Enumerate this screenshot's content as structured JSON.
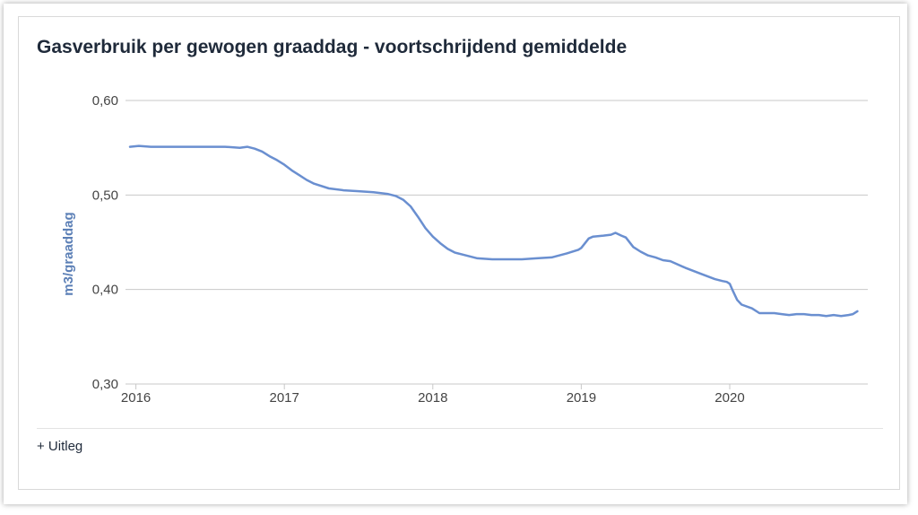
{
  "card": {
    "title": "Gasverbruik per gewogen graaddag - voortschrijdend gemiddelde",
    "toggle_label": "+ Uitleg"
  },
  "colors": {
    "line": "#6a8fd0",
    "grid": "#c8c8c8",
    "title": "#1f2a3a",
    "axis_title": "#5b7fb6"
  },
  "chart_data": {
    "type": "line",
    "title": "Gasverbruik per gewogen graaddag - voortschrijdend gemiddelde",
    "xlabel": "",
    "ylabel": "m3/graaddag",
    "xlim": [
      2015.93,
      2020.93
    ],
    "ylim": [
      0.3,
      0.6
    ],
    "yticks": [
      0.3,
      0.4,
      0.5,
      0.6
    ],
    "ytick_labels": [
      "0,30",
      "0,40",
      "0,50",
      "0,60"
    ],
    "xticks": [
      2016,
      2017,
      2018,
      2019,
      2020
    ],
    "xtick_labels": [
      "2016",
      "2017",
      "2018",
      "2019",
      "2020"
    ],
    "grid": true,
    "series": [
      {
        "x": [
          2015.96,
          2016.02,
          2016.1,
          2016.2,
          2016.4,
          2016.6,
          2016.7,
          2016.75,
          2016.8,
          2016.85,
          2016.9,
          2016.95,
          2017.0,
          2017.05,
          2017.1,
          2017.15,
          2017.2,
          2017.3,
          2017.4,
          2017.5,
          2017.6,
          2017.7,
          2017.75,
          2017.8,
          2017.85,
          2017.9,
          2017.95,
          2018.0,
          2018.05,
          2018.1,
          2018.15,
          2018.2,
          2018.3,
          2018.4,
          2018.5,
          2018.6,
          2018.7,
          2018.8,
          2018.9,
          2018.98,
          2019.0,
          2019.05,
          2019.08,
          2019.15,
          2019.2,
          2019.23,
          2019.27,
          2019.3,
          2019.35,
          2019.4,
          2019.45,
          2019.5,
          2019.55,
          2019.6,
          2019.7,
          2019.8,
          2019.9,
          2019.95,
          2019.98,
          2020.0,
          2020.02,
          2020.05,
          2020.08,
          2020.15,
          2020.2,
          2020.25,
          2020.3,
          2020.35,
          2020.4,
          2020.45,
          2020.5,
          2020.55,
          2020.6,
          2020.65,
          2020.7,
          2020.75,
          2020.8,
          2020.83,
          2020.86
        ],
        "y": [
          0.551,
          0.552,
          0.551,
          0.551,
          0.551,
          0.551,
          0.55,
          0.551,
          0.549,
          0.546,
          0.541,
          0.537,
          0.532,
          0.526,
          0.521,
          0.516,
          0.512,
          0.507,
          0.505,
          0.504,
          0.503,
          0.501,
          0.499,
          0.495,
          0.488,
          0.477,
          0.465,
          0.456,
          0.449,
          0.443,
          0.439,
          0.437,
          0.433,
          0.432,
          0.432,
          0.432,
          0.433,
          0.434,
          0.438,
          0.442,
          0.444,
          0.454,
          0.456,
          0.457,
          0.458,
          0.46,
          0.457,
          0.455,
          0.445,
          0.44,
          0.436,
          0.434,
          0.431,
          0.43,
          0.423,
          0.417,
          0.411,
          0.409,
          0.408,
          0.406,
          0.399,
          0.389,
          0.384,
          0.38,
          0.375,
          0.375,
          0.375,
          0.374,
          0.373,
          0.374,
          0.374,
          0.373,
          0.373,
          0.372,
          0.373,
          0.372,
          0.373,
          0.374,
          0.377
        ]
      }
    ]
  }
}
